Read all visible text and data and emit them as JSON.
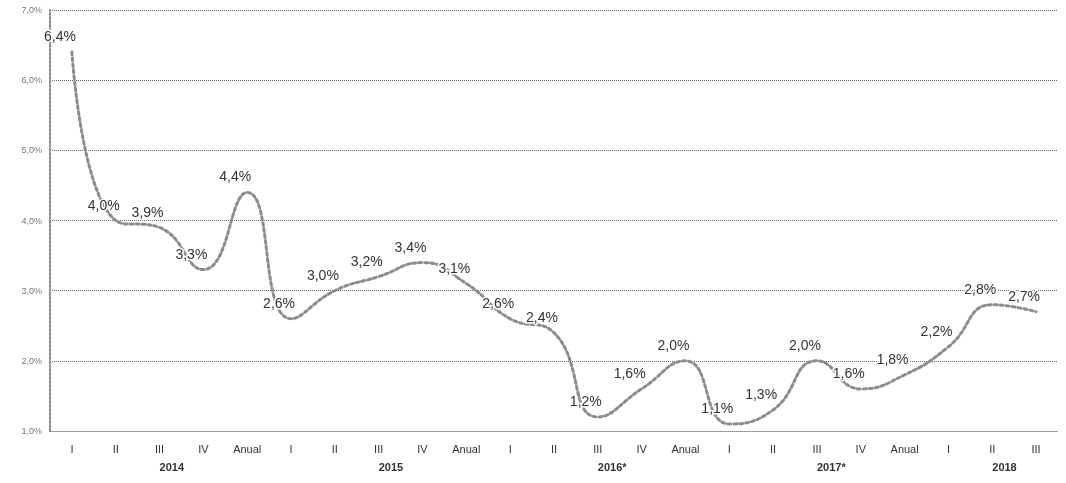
{
  "chart_data": {
    "type": "line",
    "categories": [
      "I",
      "II",
      "III",
      "IV",
      "Anual",
      "I",
      "II",
      "III",
      "IV",
      "Anual",
      "I",
      "II",
      "III",
      "IV",
      "Anual",
      "I",
      "II",
      "III",
      "IV",
      "Anual",
      "I",
      "II",
      "III"
    ],
    "series": [
      {
        "color": "#8c8c8c",
        "values": [
          6.4,
          4.0,
          3.9,
          3.3,
          4.4,
          2.6,
          3.0,
          3.2,
          3.4,
          3.1,
          2.6,
          2.4,
          1.2,
          1.6,
          2.0,
          1.1,
          1.3,
          2.0,
          1.6,
          1.8,
          2.2,
          2.8,
          2.7
        ],
        "value_labels": [
          "6,4%",
          "4,0%",
          "3,9%",
          "3,3%",
          "4,4%",
          "2,6%",
          "3,0%",
          "3,2%",
          "3,4%",
          "3,1%",
          "2,6%",
          "2,4%",
          "1,2%",
          "1,6%",
          "2,0%",
          "1,1%",
          "1,3%",
          "2,0%",
          "1,6%",
          "1,8%",
          "2,2%",
          "2,8%",
          "2,7%"
        ]
      }
    ],
    "ylim": [
      1,
      7
    ],
    "yticks": [
      {
        "value": 1,
        "label": "1,0%"
      },
      {
        "value": 2,
        "label": "2,0%"
      },
      {
        "value": 3,
        "label": "3,0%"
      },
      {
        "value": 4,
        "label": "4,0%"
      },
      {
        "value": 5,
        "label": "5,0%"
      },
      {
        "value": 6,
        "label": "6,0%"
      },
      {
        "value": 7,
        "label": "7,0%"
      }
    ],
    "annotations": [
      "2014",
      "2015",
      "2016*",
      "2017*",
      "2018"
    ],
    "grid": "y",
    "marker": "none",
    "line_style": "dotted"
  }
}
